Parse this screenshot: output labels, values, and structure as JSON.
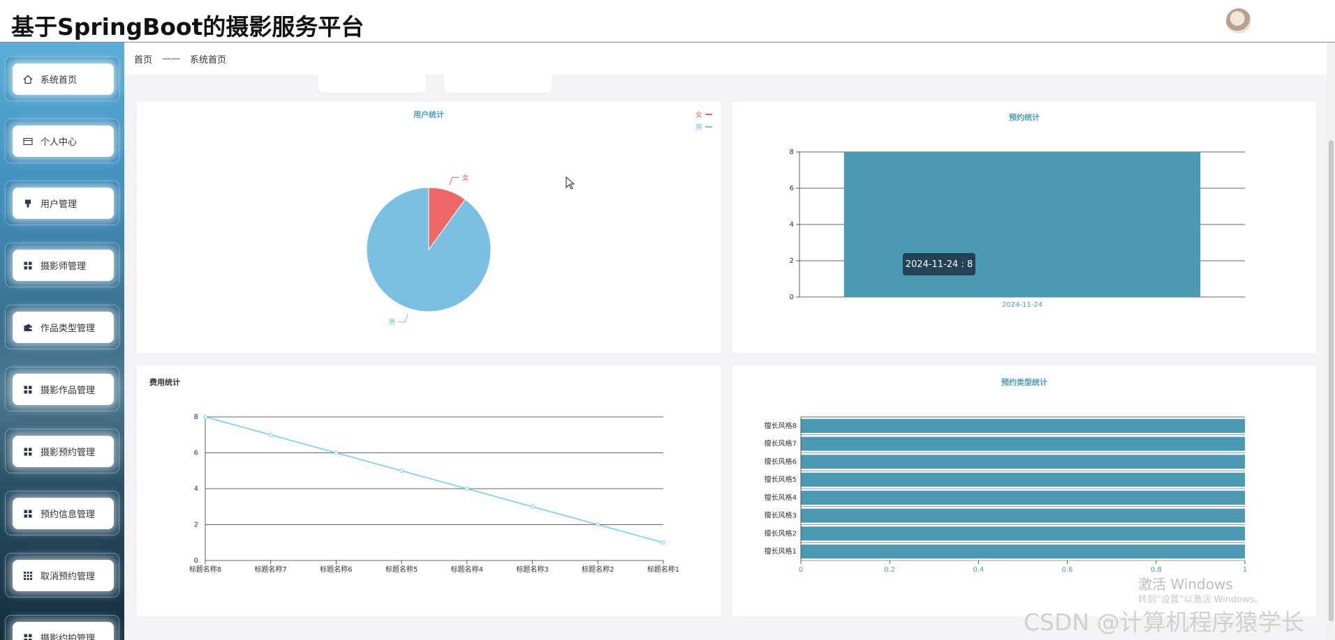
{
  "app": {
    "title": "基于SpringBoot的摄影服务平台"
  },
  "sidebar": {
    "items": [
      {
        "label": "系统首页",
        "icon": "home-icon"
      },
      {
        "label": "个人中心",
        "icon": "id-card-icon"
      },
      {
        "label": "用户管理",
        "icon": "user-pin-icon"
      },
      {
        "label": "摄影师管理",
        "icon": "grid-icon"
      },
      {
        "label": "作品类型管理",
        "icon": "wallet-icon"
      },
      {
        "label": "摄影作品管理",
        "icon": "grid-icon"
      },
      {
        "label": "摄影预约管理",
        "icon": "grid-icon"
      },
      {
        "label": "预约信息管理",
        "icon": "grid-icon"
      },
      {
        "label": "取消预约管理",
        "icon": "grid9-icon"
      },
      {
        "label": "摄影约拍管理",
        "icon": "grid-icon"
      }
    ]
  },
  "breadcrumb": {
    "home": "首页",
    "separator": "——",
    "current": "系统首页"
  },
  "colors": {
    "pie_female": "#ee6666",
    "pie_male": "#7ac0e2",
    "bar": "#4a9ab6",
    "line": "#6fd0e8",
    "title_teal": "#4a9eb5"
  },
  "charts": {
    "user_stats": {
      "title": "用户统计",
      "legend": [
        "女",
        "男"
      ]
    },
    "booking_stats": {
      "title": "预约统计",
      "tooltip": "2024-11-24 : 8"
    },
    "cost_stats": {
      "title": "费用统计"
    },
    "booking_type_stats": {
      "title": "预约类型统计"
    }
  },
  "chart_data": [
    {
      "type": "pie",
      "title": "用户统计",
      "labels": [
        "女",
        "男"
      ],
      "values": [
        1,
        9
      ],
      "legend": "top-right"
    },
    {
      "type": "bar",
      "title": "预约统计",
      "categories": [
        "2024-11-24"
      ],
      "values": [
        8
      ],
      "ylim": [
        0,
        8
      ],
      "yticks": [
        "0",
        "2",
        "4",
        "6",
        "8"
      ],
      "grid": true
    },
    {
      "type": "line",
      "title": "费用统计",
      "categories": [
        "标题名称8",
        "标题名称7",
        "标题名称6",
        "标题名称5",
        "标题名称4",
        "标题名称3",
        "标题名称2",
        "标题名称1"
      ],
      "values": [
        8,
        7,
        6,
        5,
        4,
        3,
        2,
        1
      ],
      "ylim": [
        0,
        8
      ],
      "yticks": [
        "0",
        "2",
        "4",
        "6",
        "8"
      ],
      "grid": true
    },
    {
      "type": "bar",
      "orientation": "horizontal",
      "title": "预约类型统计",
      "categories": [
        "擅长风格8",
        "擅长风格7",
        "擅长风格6",
        "擅长风格5",
        "擅长风格4",
        "擅长风格3",
        "擅长风格2",
        "擅长风格1"
      ],
      "values": [
        1,
        1,
        1,
        1,
        1,
        1,
        1,
        1
      ],
      "xlim": [
        0,
        1
      ],
      "xticks": [
        "0",
        "0.2",
        "0.4",
        "0.6",
        "0.8",
        "1"
      ]
    }
  ],
  "watermark": {
    "activate_title": "激活 Windows",
    "activate_sub": "转到“设置”以激活 Windows。",
    "csdn": "CSDN @计算机程序猿学长"
  }
}
